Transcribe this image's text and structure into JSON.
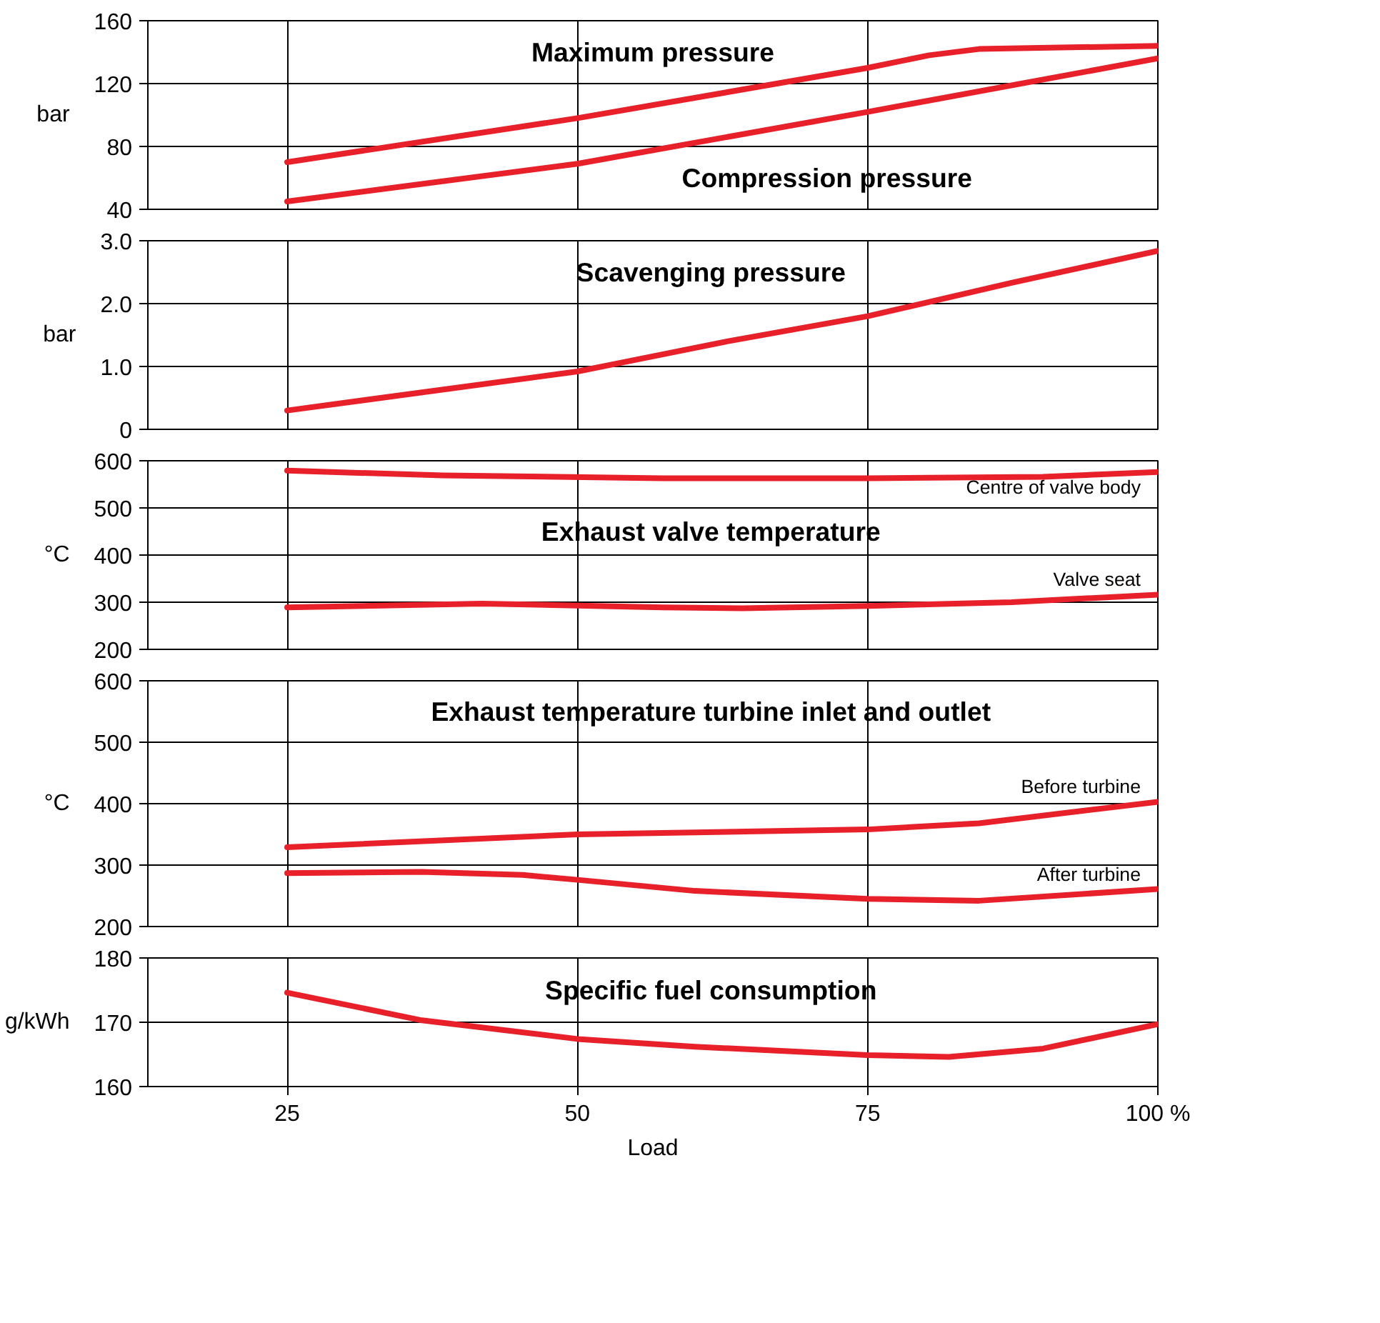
{
  "chart_data": [
    {
      "type": "line",
      "ylabel": "bar",
      "xlim": [
        13,
        100
      ],
      "ylim": [
        40,
        160
      ],
      "xticks": [
        25,
        50,
        75,
        100
      ],
      "yticks": [
        40,
        80,
        120,
        160
      ],
      "grid": true,
      "tick_labels": "y",
      "series": [
        {
          "name": "Maximum pressure",
          "color": "#e8202a",
          "x": [
            25,
            50,
            75,
            80.3,
            84.6,
            100
          ],
          "values": [
            70,
            98,
            130,
            138,
            142,
            144
          ]
        },
        {
          "name": "Compression pressure",
          "color": "#e8202a",
          "x": [
            25,
            50,
            75,
            100
          ],
          "values": [
            45,
            69,
            102,
            136
          ]
        }
      ]
    },
    {
      "type": "line",
      "title": "Scavenging pressure",
      "ylabel": "bar",
      "xlim": [
        13,
        100
      ],
      "ylim": [
        0,
        3
      ],
      "xticks": [
        25,
        50,
        75,
        100
      ],
      "yticks": [
        0,
        {
          "value": 1,
          "label": "1.0"
        },
        {
          "value": 2,
          "label": "2.0"
        },
        {
          "value": 3,
          "label": "3.0"
        }
      ],
      "grid": true,
      "tick_labels": "y",
      "series": [
        {
          "color": "#e8202a",
          "x": [
            25,
            50,
            62.9,
            75,
            87.4,
            100
          ],
          "values": [
            0.3,
            0.92,
            1.4,
            1.8,
            2.33,
            2.84
          ]
        }
      ]
    },
    {
      "type": "line",
      "title": "Exhaust valve temperature",
      "ylabel": "°C",
      "xlim": [
        13,
        100
      ],
      "ylim": [
        200,
        600
      ],
      "xticks": [
        25,
        50,
        75,
        100
      ],
      "yticks": [
        200,
        300,
        400,
        500,
        600
      ],
      "grid": true,
      "tick_labels": "y",
      "series": [
        {
          "name": "Centre of valve body",
          "color": "#e8202a",
          "x": [
            25,
            38.4,
            57.3,
            75,
            90.1,
            100
          ],
          "values": [
            579,
            569,
            563,
            563,
            566,
            576
          ]
        },
        {
          "name": "Valve seat",
          "color": "#e8202a",
          "x": [
            25,
            41.8,
            57.3,
            64.2,
            75,
            87.4,
            100
          ],
          "values": [
            289,
            297,
            289,
            287,
            292,
            300,
            316
          ]
        }
      ]
    },
    {
      "type": "line",
      "title": "Exhaust temperature turbine inlet and outlet",
      "ylabel": "°C",
      "xlim": [
        13,
        100
      ],
      "ylim": [
        200,
        600
      ],
      "xticks": [
        25,
        50,
        75,
        100
      ],
      "yticks": [
        200,
        300,
        400,
        500,
        600
      ],
      "grid": true,
      "tick_labels": "y",
      "series": [
        {
          "name": "Before turbine",
          "color": "#e8202a",
          "x": [
            25,
            50,
            75,
            84.6,
            100
          ],
          "values": [
            329,
            350,
            358,
            368,
            403
          ]
        },
        {
          "name": "After turbine",
          "color": "#e8202a",
          "x": [
            25,
            36.6,
            45.3,
            50,
            60.1,
            75,
            84.6,
            100
          ],
          "values": [
            287,
            289,
            284,
            276,
            258,
            245,
            242,
            261
          ]
        }
      ]
    },
    {
      "type": "line",
      "title": "Specific fuel consumption",
      "ylabel": "g/kWh",
      "xlabel": "Load",
      "xlim": [
        13,
        100
      ],
      "ylim": [
        160,
        180
      ],
      "xticks": [
        25,
        50,
        75,
        {
          "value": 100,
          "label": "100 %"
        }
      ],
      "yticks": [
        160,
        170,
        180
      ],
      "grid": true,
      "series": [
        {
          "color": "#e8202a",
          "x": [
            25,
            36.6,
            50,
            60.1,
            75,
            82.0,
            90.1,
            100
          ],
          "values": [
            174.6,
            170.3,
            167.4,
            166.2,
            164.9,
            164.6,
            165.9,
            169.7
          ]
        }
      ]
    }
  ]
}
